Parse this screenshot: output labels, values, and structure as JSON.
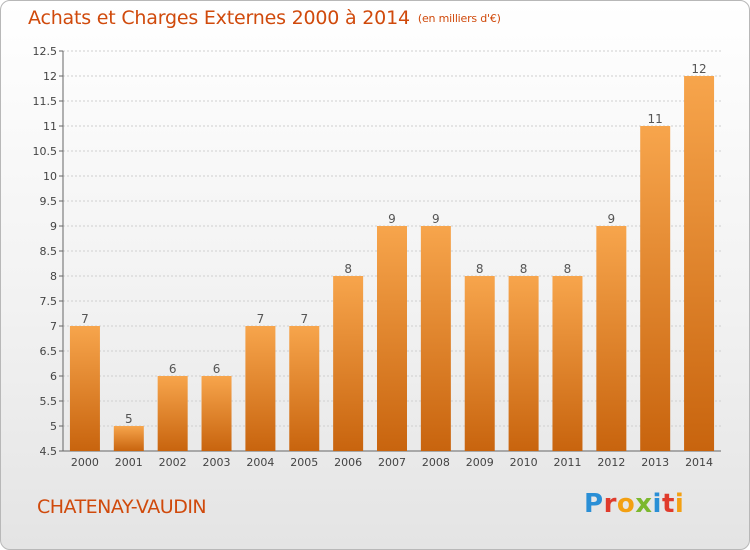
{
  "header": {
    "title": "Achats et Charges Externes 2000 à 2014",
    "unit": "(en milliers d'€)"
  },
  "footer": {
    "city": "CHATENAY-VAUDIN",
    "logo": {
      "p": "P",
      "r": "r",
      "o": "o",
      "x": "x",
      "i": "i",
      "t": "t",
      "i2": "i"
    }
  },
  "colors": {
    "bar": "#f08a2c",
    "bar_dark": "#c8640e",
    "accent": "#d04a0c"
  },
  "chart_data": {
    "type": "bar",
    "categories": [
      "2000",
      "2001",
      "2002",
      "2003",
      "2004",
      "2005",
      "2006",
      "2007",
      "2008",
      "2009",
      "2010",
      "2011",
      "2012",
      "2013",
      "2014"
    ],
    "values": [
      7,
      5,
      6,
      6,
      7,
      7,
      8,
      9,
      9,
      8,
      8,
      8,
      9,
      11,
      12
    ],
    "data_labels": [
      "7",
      "5",
      "6",
      "6",
      "7",
      "7",
      "8",
      "9",
      "9",
      "8",
      "8",
      "8",
      "9",
      "11",
      "12"
    ],
    "y_ticks": [
      "4.5",
      "5",
      "5.5",
      "6",
      "6.5",
      "7",
      "7.5",
      "8",
      "8.5",
      "9",
      "9.5",
      "10",
      "10.5",
      "11",
      "11.5",
      "12",
      "12.5"
    ],
    "ylim": [
      4.5,
      12.5
    ],
    "grid": true,
    "title": "Achats et Charges Externes 2000 à 2014",
    "xlabel": "",
    "ylabel": ""
  }
}
